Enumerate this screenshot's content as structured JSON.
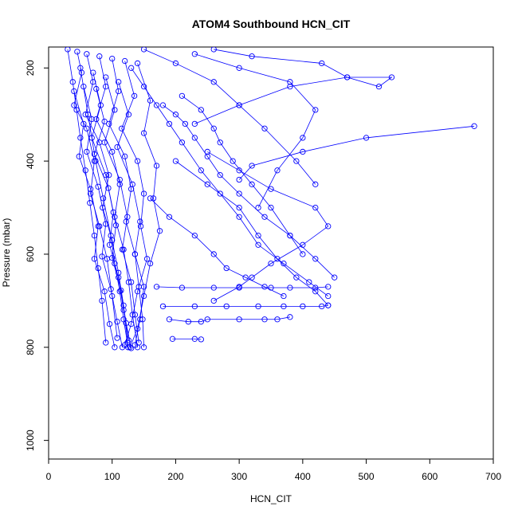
{
  "chart_data": {
    "type": "scatter",
    "title": "ATOM4 Southbound HCN_CIT",
    "xlabel": "HCN_CIT",
    "ylabel": "Pressure (mbar)",
    "xlim": [
      0,
      700
    ],
    "ylim": [
      1040,
      155
    ],
    "y_reversed": true,
    "x_ticks": [
      0,
      100,
      200,
      300,
      400,
      500,
      600,
      700
    ],
    "y_ticks": [
      200,
      400,
      600,
      800,
      1000
    ],
    "grid": false,
    "legend": "none",
    "color": "#0000ff",
    "marker": "open-circle",
    "connected": true,
    "series": [
      {
        "x": [
          30,
          38,
          44,
          50,
          58,
          65,
          72,
          78,
          84,
          90
        ],
        "y": [
          160,
          230,
          290,
          350,
          420,
          490,
          560,
          630,
          700,
          790
        ]
      },
      {
        "x": [
          45,
          52,
          40,
          60,
          72,
          66,
          80,
          92,
          100,
          108
        ],
        "y": [
          165,
          210,
          280,
          330,
          400,
          470,
          540,
          610,
          690,
          780
        ]
      },
      {
        "x": [
          60,
          70,
          58,
          80,
          95,
          85,
          100,
          110,
          118,
          125
        ],
        "y": [
          170,
          230,
          300,
          360,
          430,
          500,
          570,
          640,
          710,
          800
        ]
      },
      {
        "x": [
          80,
          90,
          75,
          100,
          112,
          104,
          118,
          126,
          132,
          140
        ],
        "y": [
          175,
          240,
          310,
          380,
          450,
          520,
          590,
          660,
          730,
          800
        ]
      },
      {
        "x": [
          100,
          110,
          95,
          120,
          130,
          122,
          136,
          142,
          148,
          150
        ],
        "y": [
          180,
          250,
          320,
          390,
          460,
          530,
          600,
          670,
          740,
          800
        ]
      },
      {
        "x": [
          120,
          135,
          115,
          140,
          150,
          145,
          155,
          140,
          130,
          120
        ],
        "y": [
          185,
          260,
          330,
          400,
          470,
          540,
          610,
          680,
          750,
          795
        ]
      },
      {
        "x": [
          140,
          160,
          150,
          170,
          165,
          175,
          160,
          150,
          140,
          128
        ],
        "y": [
          190,
          270,
          340,
          410,
          480,
          550,
          620,
          690,
          760,
          800
        ]
      },
      {
        "x": [
          50,
          62,
          74,
          86,
          98,
          104,
          112,
          118,
          124
        ],
        "y": [
          200,
          300,
          400,
          480,
          560,
          620,
          680,
          740,
          790
        ]
      },
      {
        "x": [
          70,
          82,
          68,
          90,
          102,
          96,
          110,
          118,
          126
        ],
        "y": [
          210,
          280,
          350,
          430,
          510,
          580,
          650,
          720,
          785
        ]
      },
      {
        "x": [
          90,
          104,
          88,
          112,
          124,
          116,
          130,
          136,
          142
        ],
        "y": [
          220,
          290,
          360,
          440,
          520,
          590,
          660,
          730,
          790
        ]
      },
      {
        "x": [
          110,
          126,
          108,
          132,
          144,
          136,
          150,
          144,
          136
        ],
        "y": [
          230,
          300,
          370,
          450,
          530,
          600,
          670,
          740,
          795
        ]
      },
      {
        "x": [
          40,
          55,
          48,
          66,
          78,
          72,
          88,
          96,
          104
        ],
        "y": [
          250,
          320,
          390,
          460,
          540,
          610,
          680,
          750,
          800
        ]
      },
      {
        "x": [
          55,
          68,
          60,
          78,
          90,
          84,
          98,
          108,
          116
        ],
        "y": [
          240,
          310,
          380,
          455,
          535,
          605,
          675,
          745,
          800
        ]
      },
      {
        "x": [
          75,
          88,
          72,
          94,
          106,
          100,
          114,
          122,
          130
        ],
        "y": [
          245,
          315,
          385,
          458,
          538,
          608,
          678,
          748,
          802
        ]
      },
      {
        "x": [
          150,
          200,
          260,
          300,
          340,
          390,
          420
        ],
        "y": [
          160,
          190,
          230,
          280,
          330,
          400,
          450
        ]
      },
      {
        "x": [
          230,
          300,
          380,
          420,
          400,
          360,
          330
        ],
        "y": [
          170,
          200,
          230,
          290,
          350,
          420,
          500
        ]
      },
      {
        "x": [
          260,
          320,
          430,
          470,
          520,
          540,
          470,
          380,
          300,
          230
        ],
        "y": [
          160,
          175,
          190,
          220,
          240,
          220,
          220,
          240,
          280,
          320
        ]
      },
      {
        "x": [
          670,
          500,
          400,
          320,
          300
        ],
        "y": [
          325,
          350,
          380,
          410,
          440
        ]
      },
      {
        "x": [
          250,
          300,
          350,
          420,
          440,
          400,
          350,
          320,
          300,
          260
        ],
        "y": [
          380,
          420,
          460,
          500,
          540,
          580,
          620,
          650,
          670,
          700
        ]
      },
      {
        "x": [
          200,
          250,
          300,
          330,
          360,
          390,
          420,
          440
        ],
        "y": [
          400,
          450,
          500,
          560,
          610,
          650,
          680,
          710
        ]
      },
      {
        "x": [
          160,
          190,
          230,
          260,
          280,
          310,
          340,
          370
        ],
        "y": [
          480,
          520,
          560,
          600,
          630,
          650,
          670,
          690
        ]
      },
      {
        "x": [
          170,
          210,
          260,
          300,
          350,
          380,
          420,
          440
        ],
        "y": [
          670,
          672,
          672,
          672,
          672,
          672,
          672,
          670
        ]
      },
      {
        "x": [
          180,
          230,
          280,
          330,
          370,
          400,
          430,
          440
        ],
        "y": [
          712,
          712,
          712,
          712,
          712,
          712,
          712,
          710
        ]
      },
      {
        "x": [
          190,
          220,
          240,
          250,
          300,
          340,
          360,
          380
        ],
        "y": [
          740,
          745,
          745,
          740,
          740,
          740,
          740,
          735
        ]
      },
      {
        "x": [
          195,
          230,
          240
        ],
        "y": [
          782,
          782,
          783
        ]
      },
      {
        "x": [
          210,
          240,
          260,
          270,
          290,
          320,
          350,
          380,
          400
        ],
        "y": [
          260,
          290,
          330,
          360,
          400,
          450,
          500,
          560,
          600
        ]
      },
      {
        "x": [
          180,
          200,
          215,
          230,
          250,
          270,
          300,
          340,
          380,
          420,
          450
        ],
        "y": [
          280,
          300,
          320,
          350,
          390,
          430,
          470,
          520,
          560,
          610,
          650
        ]
      },
      {
        "x": [
          130,
          150,
          170,
          190,
          210,
          240,
          270,
          300,
          330,
          370,
          410,
          440
        ],
        "y": [
          200,
          240,
          280,
          320,
          360,
          420,
          470,
          520,
          580,
          620,
          660,
          690
        ]
      }
    ]
  }
}
